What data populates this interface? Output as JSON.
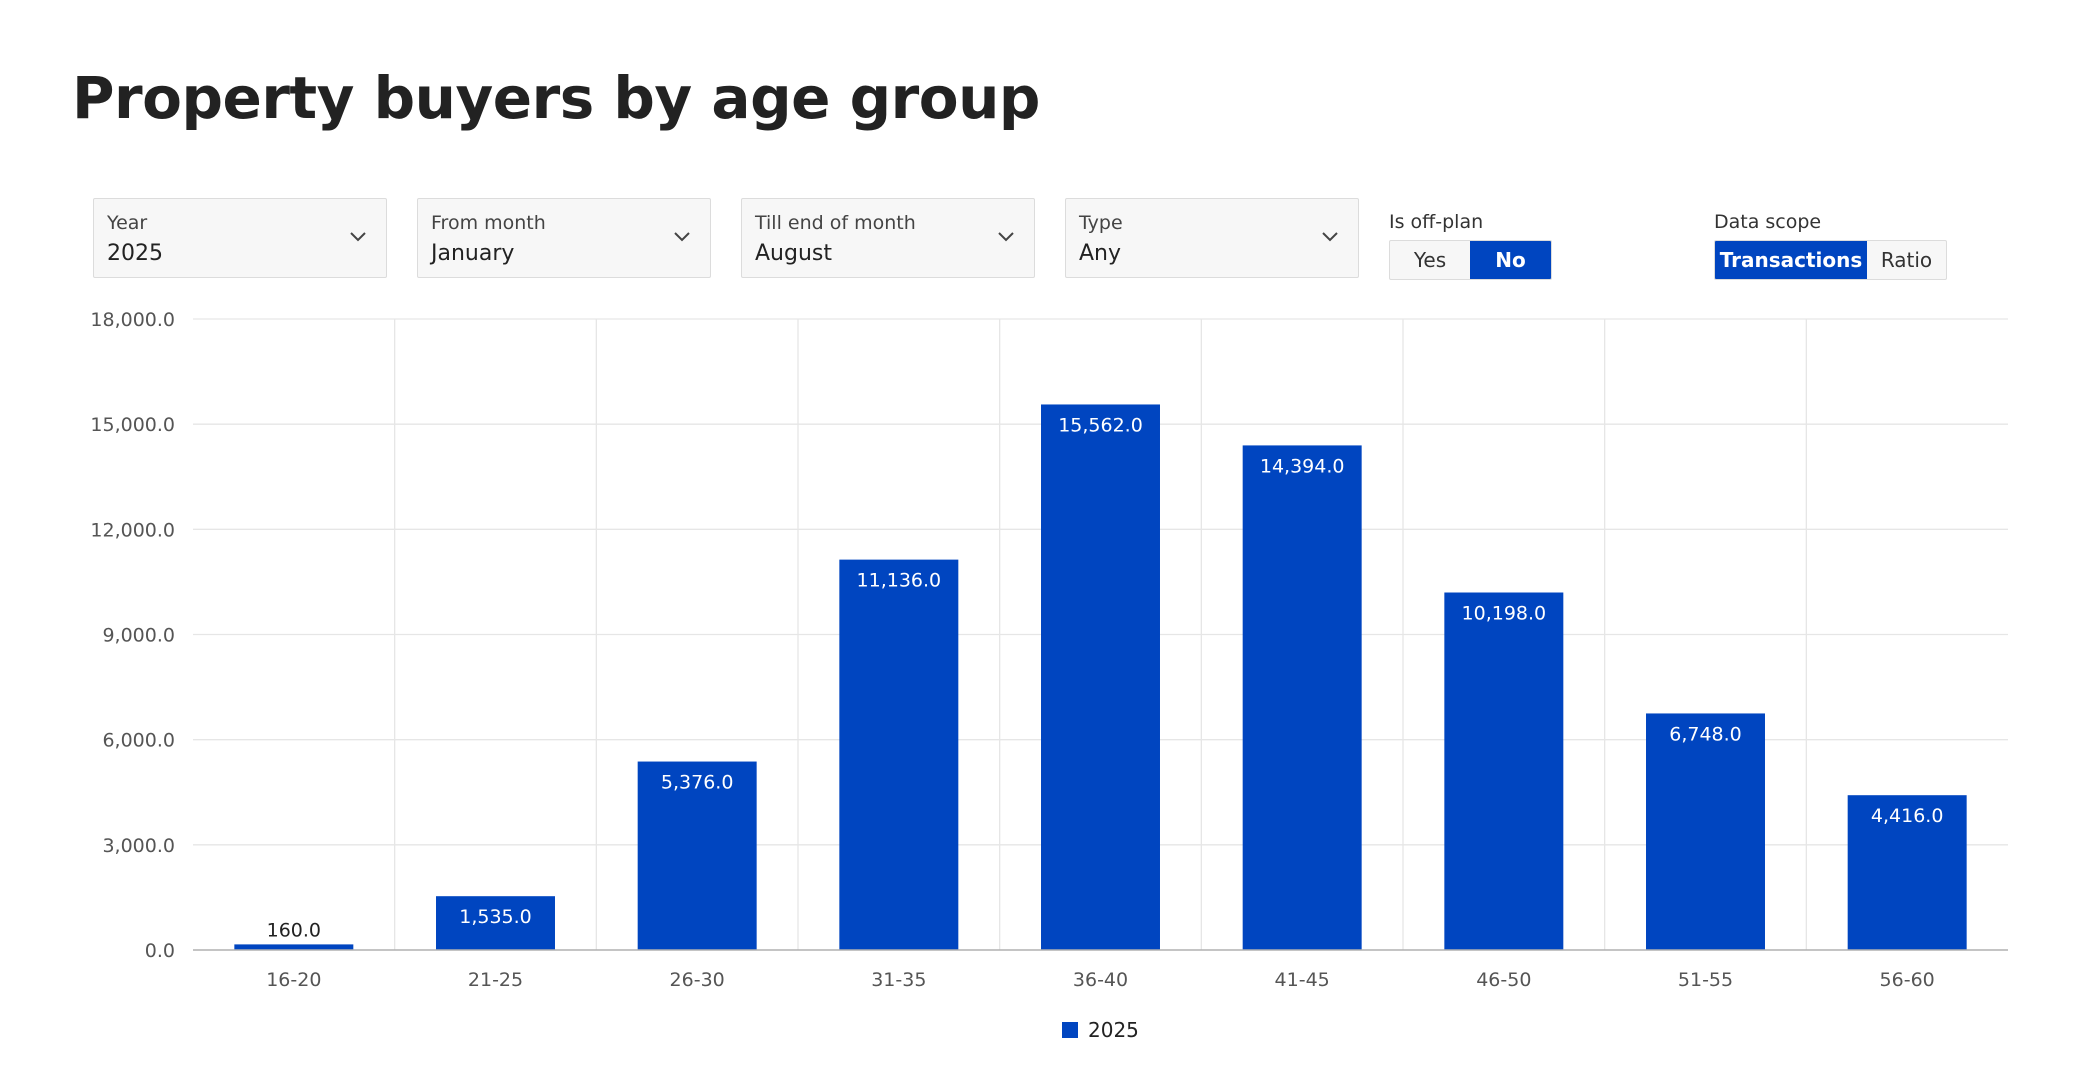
{
  "page": {
    "title": "Property buyers by age group"
  },
  "filters": {
    "year": {
      "label": "Year",
      "value": "2025"
    },
    "from_month": {
      "label": "From month",
      "value": "January"
    },
    "till_month": {
      "label": "Till end of month",
      "value": "August"
    },
    "type": {
      "label": "Type",
      "value": "Any"
    }
  },
  "off_plan": {
    "label": "Is off-plan",
    "options": [
      "Yes",
      "No"
    ],
    "selected": "No"
  },
  "data_scope": {
    "label": "Data scope",
    "options": [
      "Transactions",
      "Ratio"
    ],
    "selected": "Transactions"
  },
  "colors": {
    "accent": "#0045c0",
    "grid": "#e6e6e6",
    "axis": "#b0b0b0"
  },
  "chart_data": {
    "type": "bar",
    "categories": [
      "16-20",
      "21-25",
      "26-30",
      "31-35",
      "36-40",
      "41-45",
      "46-50",
      "51-55",
      "56-60"
    ],
    "series": [
      {
        "name": "2025",
        "values": [
          160.0,
          1535.0,
          5376.0,
          11136.0,
          15562.0,
          14394.0,
          10198.0,
          6748.0,
          4416.0
        ],
        "labels": [
          "160.0",
          "1,535.0",
          "5,376.0",
          "11,136.0",
          "15,562.0",
          "14,394.0",
          "10,198.0",
          "6,748.0",
          "4,416.0"
        ]
      }
    ],
    "y_ticks": [
      0,
      3000,
      6000,
      9000,
      12000,
      15000,
      18000
    ],
    "y_tick_labels": [
      "0.0",
      "3,000.0",
      "6,000.0",
      "9,000.0",
      "12,000.0",
      "15,000.0",
      "18,000.0"
    ],
    "ylim": [
      0,
      18000
    ],
    "grid": true,
    "legend_position": "bottom-center",
    "title": "",
    "xlabel": "",
    "ylabel": ""
  }
}
